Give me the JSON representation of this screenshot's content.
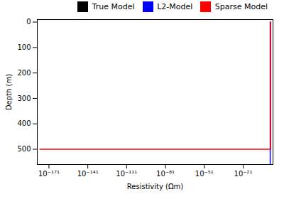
{
  "chart_data": {
    "type": "line",
    "xlabel": "Resistivity (Ωm)",
    "ylabel": "Depth (m)",
    "log": "x",
    "grid": false,
    "legend": "upper right",
    "xlim": [
      1e-180,
      100
    ],
    "ylim": [
      560,
      -10
    ],
    "xticks": [
      {
        "value": 1e-171,
        "label": "10⁻¹⁷¹"
      },
      {
        "value": 1e-141,
        "label": "10⁻¹⁴¹"
      },
      {
        "value": 1e-111,
        "label": "10⁻¹¹¹"
      },
      {
        "value": 1e-81,
        "label": "10⁻⁸¹"
      },
      {
        "value": 1e-51,
        "label": "10⁻⁵¹"
      },
      {
        "value": 1e-21,
        "label": "10⁻²¹"
      }
    ],
    "yticks": [
      0,
      100,
      200,
      300,
      400,
      500
    ],
    "series": [
      {
        "name": "True Model",
        "color": "black",
        "x": [
          1.0,
          1.0
        ],
        "values": [
          0,
          500
        ]
      },
      {
        "name": "L2-Model",
        "color": "blue",
        "x": [
          0.7,
          0.7
        ],
        "values": [
          0,
          560
        ]
      },
      {
        "name": "Sparse Model",
        "color": "red",
        "x": [
          1e-178,
          1.0,
          null,
          1.0,
          1.0
        ],
        "values": [
          500,
          500,
          null,
          0,
          500
        ]
      }
    ]
  }
}
